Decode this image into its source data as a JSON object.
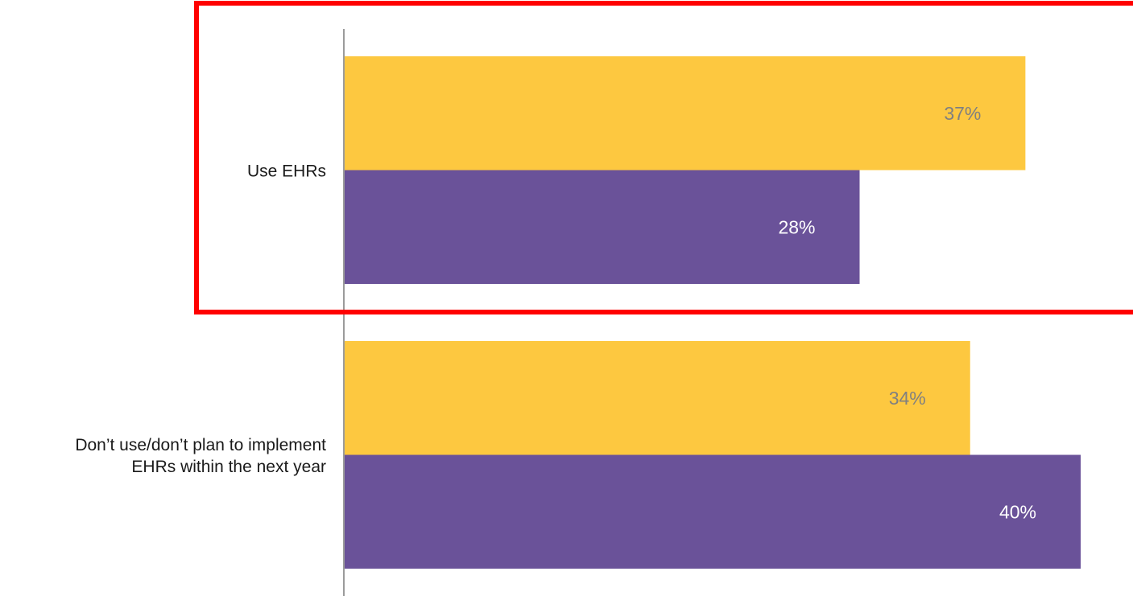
{
  "chart_data": {
    "type": "bar",
    "orientation": "horizontal",
    "categories": [
      [
        "Use EHRs"
      ],
      [
        "Don’t use/don’t plan to implement",
        "EHRs within the next year"
      ]
    ],
    "series": [
      {
        "values": [
          37,
          34
        ],
        "labels": [
          "37%",
          "34%"
        ],
        "color": "#fdc840",
        "label_color": "#808080"
      },
      {
        "values": [
          28,
          40
        ],
        "labels": [
          "28%",
          "40%"
        ],
        "color": "#6a5299",
        "label_color": "#ffffff"
      }
    ],
    "xlim": [
      0,
      40
    ],
    "grid": false,
    "legend": "none",
    "axis_color": "#9b9b9b",
    "highlight": {
      "category_index": 0,
      "color": "#ff0000"
    }
  }
}
